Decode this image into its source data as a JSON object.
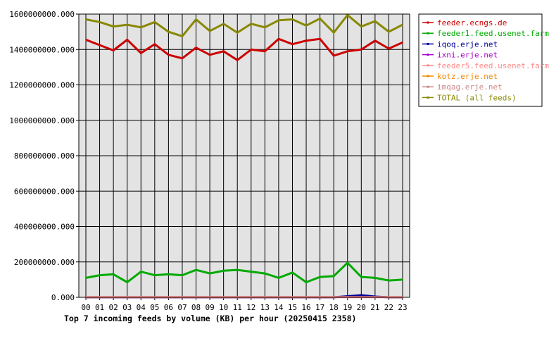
{
  "chart_data": {
    "type": "line",
    "title": "Top 7 incoming feeds by volume (KB) per hour (20250415 2358)",
    "xlabel": "",
    "ylabel": "",
    "categories": [
      "00",
      "01",
      "02",
      "03",
      "04",
      "05",
      "06",
      "07",
      "08",
      "09",
      "10",
      "11",
      "12",
      "13",
      "14",
      "15",
      "16",
      "17",
      "18",
      "19",
      "20",
      "21",
      "22",
      "23"
    ],
    "ylim": [
      0,
      1600000000
    ],
    "yticks": [
      0,
      200000000,
      400000000,
      600000000,
      800000000,
      1000000000,
      1200000000,
      1400000000,
      1600000000
    ],
    "ytick_labels": [
      "0.000",
      "200000000.000",
      "400000000.000",
      "600000000.000",
      "800000000.000",
      "1000000000.000",
      "1200000000.000",
      "1400000000.000",
      "1600000000.000"
    ],
    "grid": true,
    "legend_position": "right",
    "series": [
      {
        "name": "feeder.ecngs.de",
        "color": "#cc0000",
        "values": [
          1455000000,
          1425000000,
          1395000000,
          1455000000,
          1380000000,
          1430000000,
          1370000000,
          1350000000,
          1410000000,
          1370000000,
          1390000000,
          1340000000,
          1400000000,
          1390000000,
          1460000000,
          1430000000,
          1450000000,
          1460000000,
          1365000000,
          1390000000,
          1400000000,
          1450000000,
          1405000000,
          1440000000
        ]
      },
      {
        "name": "feeder1.feed.usenet.farm",
        "color": "#00aa00",
        "values": [
          110000000,
          125000000,
          130000000,
          85000000,
          145000000,
          125000000,
          130000000,
          125000000,
          155000000,
          135000000,
          150000000,
          155000000,
          145000000,
          135000000,
          110000000,
          140000000,
          85000000,
          115000000,
          120000000,
          195000000,
          115000000,
          110000000,
          95000000,
          100000000
        ]
      },
      {
        "name": "iqoq.erje.net",
        "color": "#000099",
        "values": [
          0,
          0,
          0,
          0,
          0,
          0,
          0,
          0,
          0,
          0,
          0,
          0,
          0,
          0,
          0,
          0,
          0,
          0,
          0,
          6000000,
          12000000,
          4000000,
          0,
          0
        ]
      },
      {
        "name": "ixni.erje.net",
        "color": "#aa00cc",
        "values": [
          0,
          0,
          0,
          0,
          0,
          0,
          0,
          0,
          0,
          0,
          0,
          0,
          0,
          0,
          0,
          0,
          0,
          0,
          0,
          0,
          0,
          0,
          0,
          0
        ]
      },
      {
        "name": "feeder5.feed.usenet.farm",
        "color": "#ff8888",
        "values": [
          1000000,
          1000000,
          1000000,
          1000000,
          1000000,
          1000000,
          1000000,
          1000000,
          1000000,
          1000000,
          1000000,
          1000000,
          1000000,
          1000000,
          1000000,
          1000000,
          1000000,
          1000000,
          1000000,
          1000000,
          1000000,
          1000000,
          1000000,
          1000000
        ]
      },
      {
        "name": "kotz.erje.net",
        "color": "#ee8800",
        "values": [
          0,
          0,
          0,
          0,
          0,
          0,
          0,
          0,
          0,
          0,
          0,
          0,
          0,
          0,
          0,
          0,
          0,
          0,
          0,
          0,
          0,
          0,
          0,
          0
        ]
      },
      {
        "name": "imqag.erje.net",
        "color": "#cc8888",
        "values": [
          0,
          0,
          0,
          0,
          0,
          0,
          0,
          0,
          0,
          0,
          0,
          0,
          0,
          0,
          0,
          0,
          0,
          0,
          0,
          0,
          0,
          0,
          0,
          0
        ]
      },
      {
        "name": "TOTAL (all feeds)",
        "color": "#888800",
        "values": [
          1570000000,
          1555000000,
          1530000000,
          1540000000,
          1525000000,
          1555000000,
          1500000000,
          1475000000,
          1570000000,
          1505000000,
          1545000000,
          1495000000,
          1545000000,
          1525000000,
          1565000000,
          1570000000,
          1535000000,
          1575000000,
          1495000000,
          1595000000,
          1530000000,
          1560000000,
          1500000000,
          1540000000
        ]
      }
    ]
  }
}
